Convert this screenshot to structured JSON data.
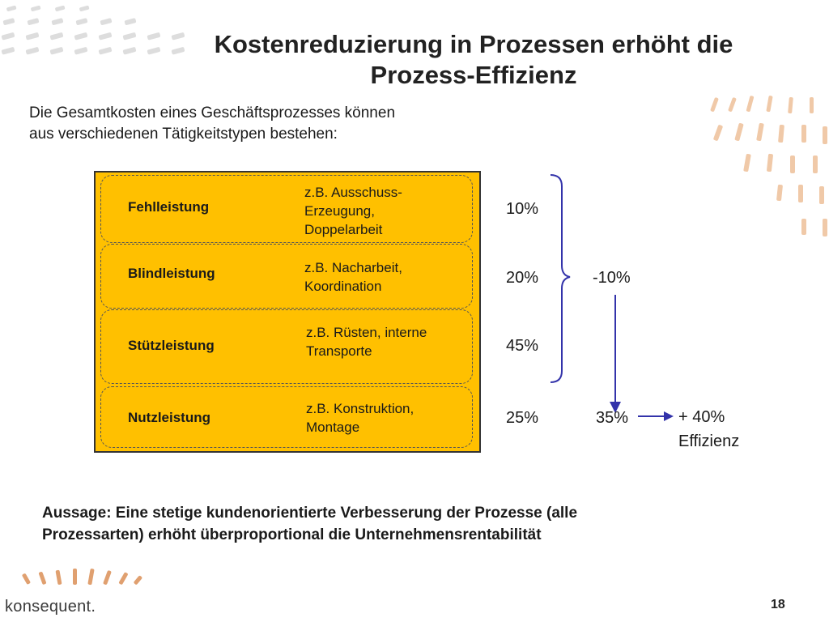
{
  "slide": {
    "title_line1": "Kostenreduzierung in Prozessen erhöht die",
    "title_line2": "Prozess-Effizienz",
    "subtitle_line1": "Die Gesamtkosten eines Geschäftsprozesses können",
    "subtitle_line2": "aus verschiedenen Tätigkeitstypen bestehen:",
    "page_number": "18",
    "brand": "konsequent."
  },
  "colors": {
    "box_fill": "#ffc000",
    "arrow": "#3333aa",
    "accent_orange": "#e8a060"
  },
  "activities": [
    {
      "label": "Fehlleistung",
      "example_lines": [
        "z.B. Ausschuss-",
        "Erzeugung,",
        "Doppelarbeit"
      ],
      "share": "10%"
    },
    {
      "label": "Blindleistung",
      "example_lines": [
        "z.B. Nacharbeit,",
        "Koordination"
      ],
      "share": "20%"
    },
    {
      "label": "Stützleistung",
      "example_lines": [
        "z.B. Rüsten, interne",
        "Transporte"
      ],
      "share": "45%"
    },
    {
      "label": "Nutzleistung",
      "example_lines": [
        "z.B. Konstruktion,",
        "Montage"
      ],
      "share": "25%"
    }
  ],
  "analysis": {
    "reduction": "-10%",
    "new_share": "35%",
    "result_line1": "+ 40%",
    "result_line2": "Effizienz"
  },
  "statement": {
    "line1": "Aussage: Eine stetige kundenorientierte Verbesserung der Prozesse (alle",
    "line2": "Prozessarten) erhöht überproportional die Unternehmensrentabilität"
  }
}
